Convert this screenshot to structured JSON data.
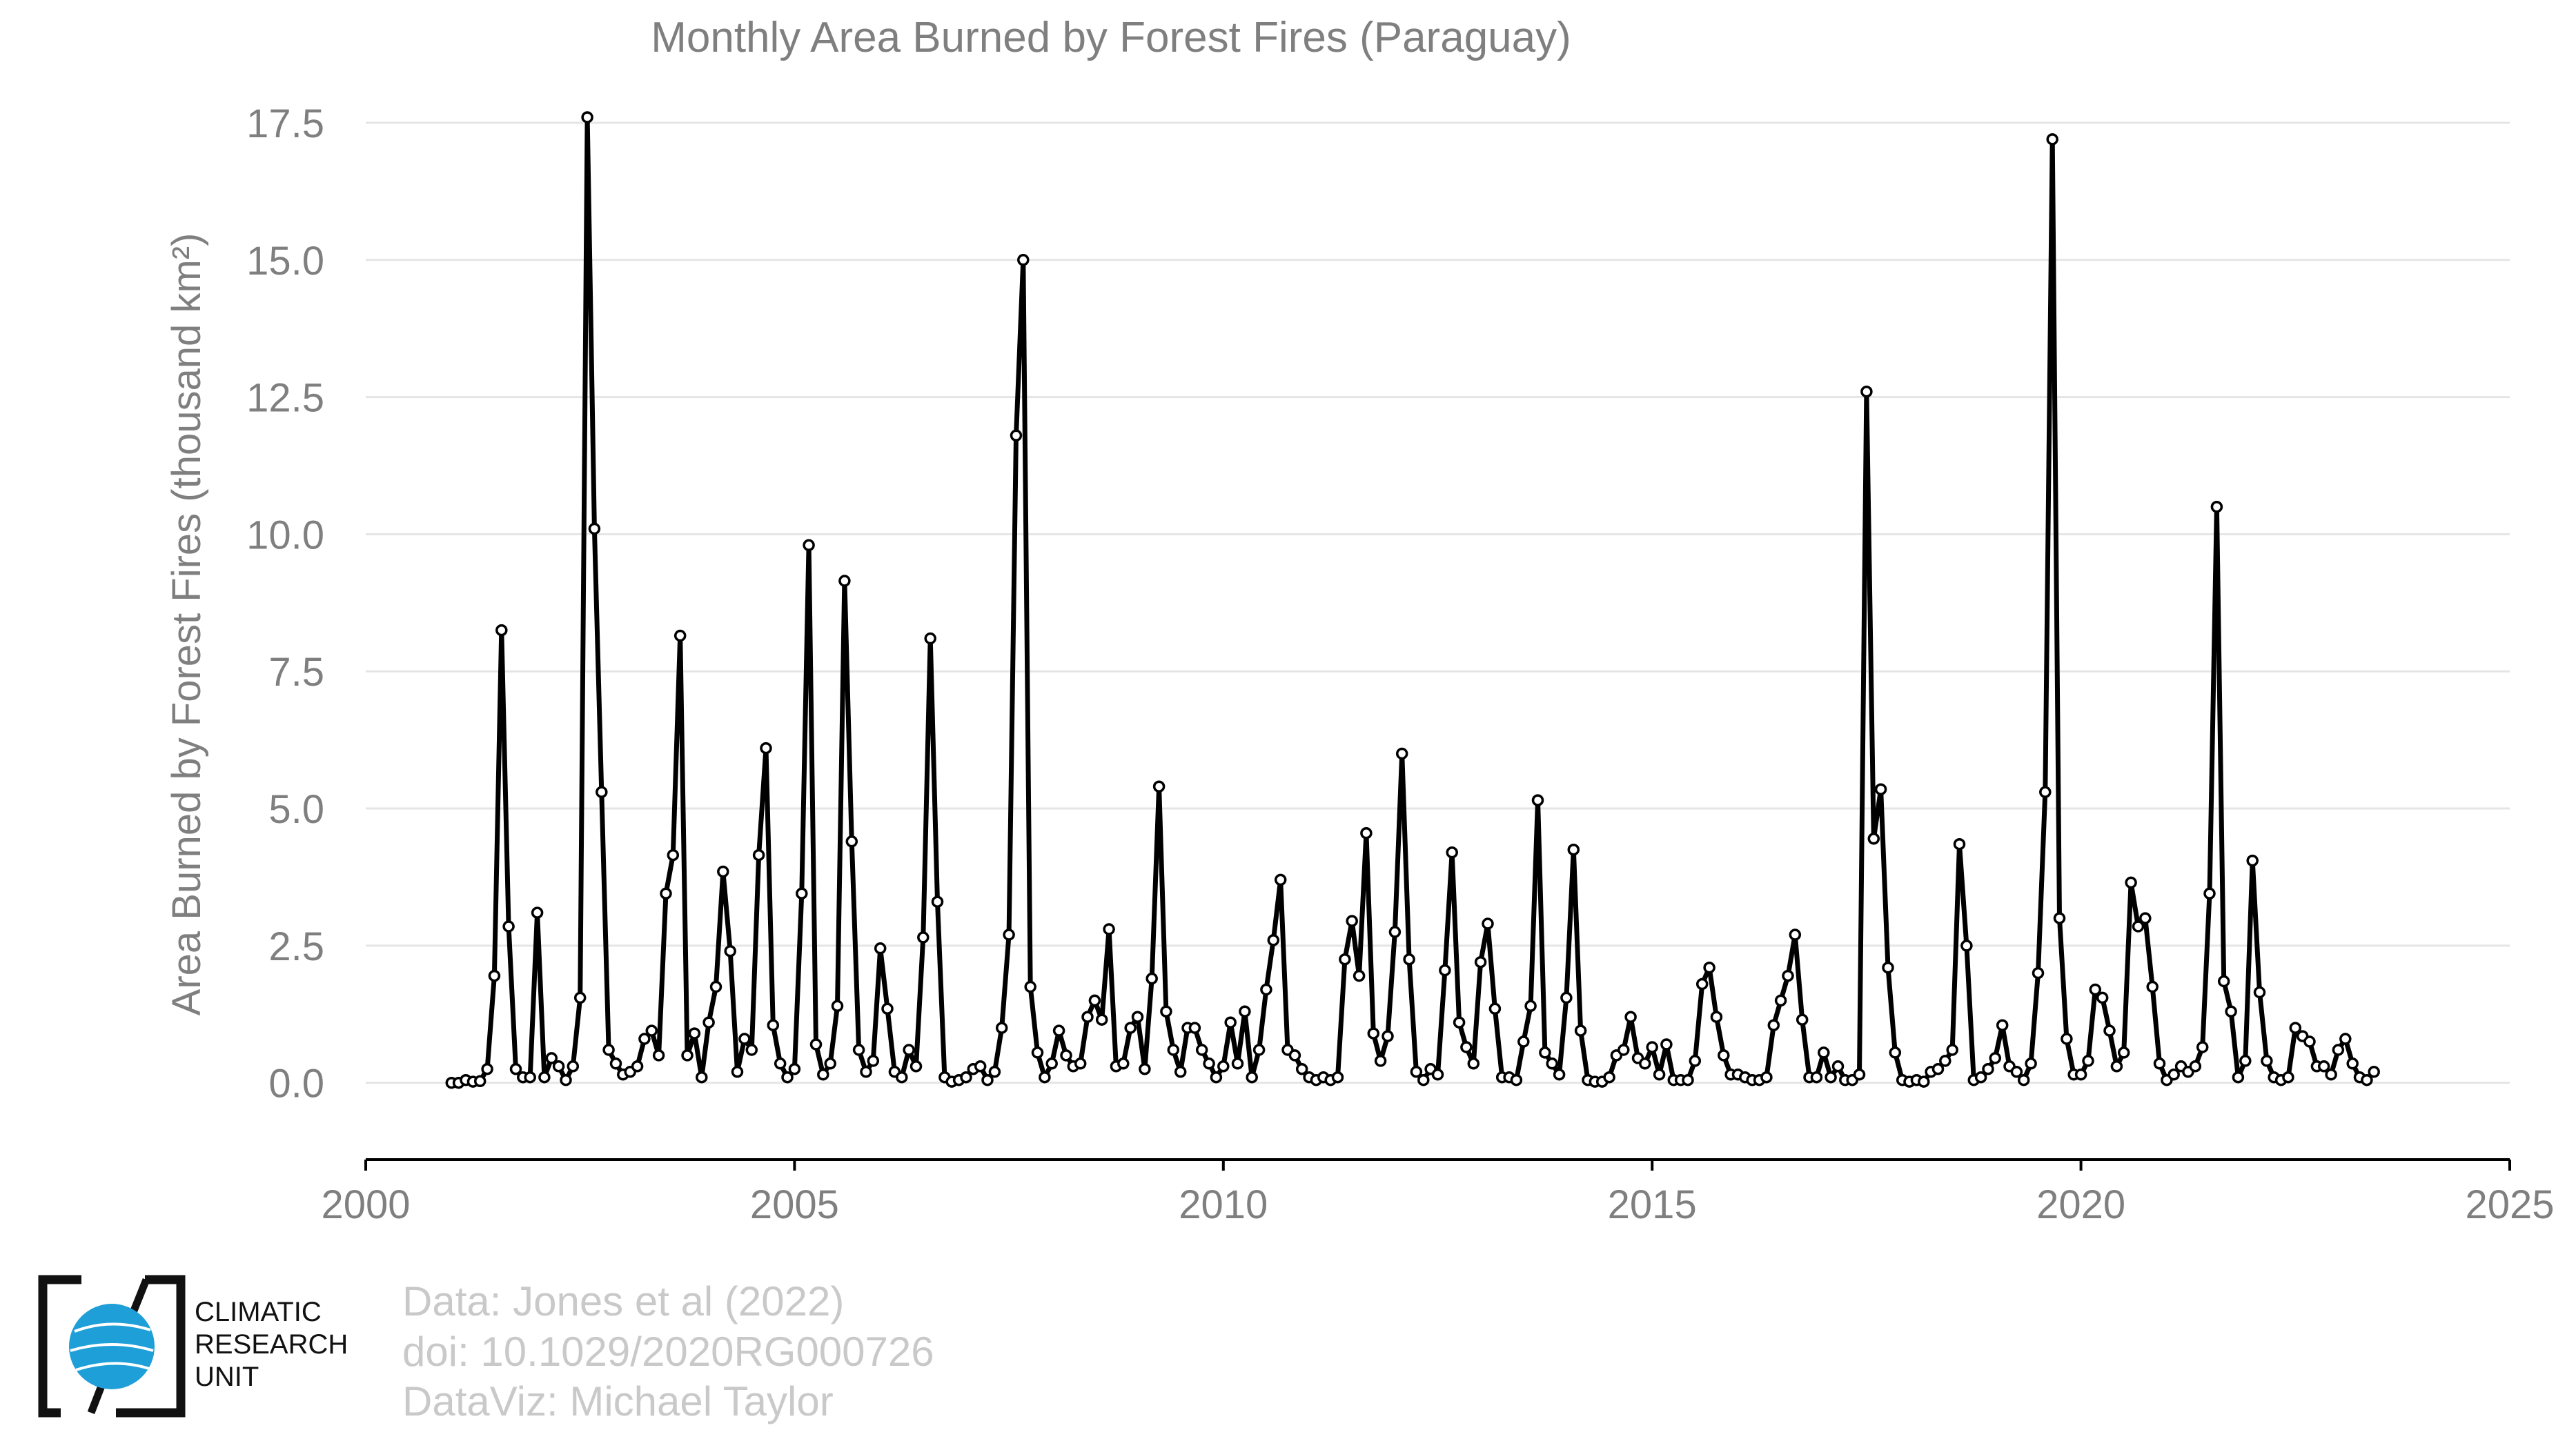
{
  "chart_data": {
    "type": "line",
    "title": "Monthly Area Burned by Forest Fires (Paraguay)",
    "ylabel": "Area Burned by Forest Fires (thousand km²)",
    "xlabel": "",
    "xlim": [
      2000,
      2025
    ],
    "ylim": [
      -1.4,
      17.5
    ],
    "x_ticks": [
      "2000",
      "2005",
      "2010",
      "2015",
      "2020",
      "2025"
    ],
    "y_ticks": [
      "0.0",
      "2.5",
      "5.0",
      "7.5",
      "10.0",
      "12.5",
      "15.0",
      "17.5"
    ],
    "grid": true,
    "series_color": "#000000",
    "start": "2001-01",
    "frequency": "monthly",
    "values": [
      0,
      0,
      0.05,
      0.02,
      0.03,
      0.25,
      1.95,
      8.25,
      2.85,
      0.25,
      0.1,
      0.1,
      3.1,
      0.1,
      0.45,
      0.3,
      0.05,
      0.3,
      1.55,
      17.6,
      10.1,
      5.3,
      0.6,
      0.35,
      0.15,
      0.2,
      0.3,
      0.8,
      0.95,
      0.5,
      3.45,
      4.15,
      8.15,
      0.5,
      0.9,
      0.1,
      1.1,
      1.75,
      3.85,
      2.4,
      0.2,
      0.8,
      0.6,
      4.15,
      6.1,
      1.05,
      0.35,
      0.1,
      0.25,
      3.45,
      9.8,
      0.7,
      0.15,
      0.35,
      1.4,
      9.15,
      4.4,
      0.6,
      0.2,
      0.4,
      2.45,
      1.35,
      0.2,
      0.1,
      0.6,
      0.3,
      2.65,
      8.1,
      3.3,
      0.1,
      0.02,
      0.05,
      0.1,
      0.25,
      0.3,
      0.05,
      0.2,
      1.0,
      2.7,
      11.8,
      15.0,
      1.75,
      0.55,
      0.1,
      0.35,
      0.95,
      0.5,
      0.3,
      0.35,
      1.2,
      1.5,
      1.15,
      2.8,
      0.3,
      0.35,
      1.0,
      1.2,
      0.25,
      1.9,
      5.4,
      1.3,
      0.6,
      0.2,
      1.0,
      1.0,
      0.6,
      0.35,
      0.1,
      0.3,
      1.1,
      0.35,
      1.3,
      0.1,
      0.6,
      1.7,
      2.6,
      3.7,
      0.6,
      0.5,
      0.25,
      0.1,
      0.05,
      0.1,
      0.05,
      0.1,
      2.25,
      2.95,
      1.95,
      4.55,
      0.9,
      0.4,
      0.85,
      2.75,
      6.0,
      2.25,
      0.2,
      0.05,
      0.25,
      0.15,
      2.05,
      4.2,
      1.1,
      0.65,
      0.35,
      2.2,
      2.9,
      1.35,
      0.1,
      0.1,
      0.05,
      0.75,
      1.4,
      5.15,
      0.55,
      0.35,
      0.15,
      1.55,
      4.25,
      0.95,
      0.05,
      0.02,
      0.02,
      0.1,
      0.5,
      0.6,
      1.2,
      0.45,
      0.35,
      0.65,
      0.15,
      0.7,
      0.05,
      0.05,
      0.05,
      0.4,
      1.8,
      2.1,
      1.2,
      0.5,
      0.15,
      0.15,
      0.1,
      0.05,
      0.05,
      0.1,
      1.05,
      1.5,
      1.95,
      2.7,
      1.15,
      0.1,
      0.1,
      0.55,
      0.1,
      0.3,
      0.05,
      0.05,
      0.15,
      12.6,
      4.45,
      5.35,
      2.1,
      0.55,
      0.05,
      0.02,
      0.05,
      0.02,
      0.2,
      0.25,
      0.4,
      0.6,
      4.35,
      2.5,
      0.05,
      0.1,
      0.25,
      0.45,
      1.05,
      0.3,
      0.2,
      0.05,
      0.35,
      2.0,
      5.3,
      17.2,
      3.0,
      0.8,
      0.15,
      0.15,
      0.4,
      1.7,
      1.55,
      0.95,
      0.3,
      0.55,
      3.65,
      2.85,
      3.0,
      1.75,
      0.35,
      0.05,
      0.15,
      0.3,
      0.2,
      0.3,
      0.65,
      3.45,
      10.5,
      1.85,
      1.3,
      0.1,
      0.4,
      4.05,
      1.65,
      0.4,
      0.1,
      0.05,
      0.1,
      1.0,
      0.85,
      0.75,
      0.3,
      0.3,
      0.15,
      0.6,
      0.8,
      0.35,
      0.1,
      0.05,
      0.2
    ]
  },
  "credits": {
    "line1": "Data: Jones et al (2022)",
    "line2": "doi: 10.1029/2020RG000726",
    "line3": "DataViz: Michael Taylor"
  },
  "logo": {
    "line1": "CLIMATIC",
    "line2": "RESEARCH",
    "line3": "UNIT",
    "globe_color": "#1e9fd8"
  }
}
